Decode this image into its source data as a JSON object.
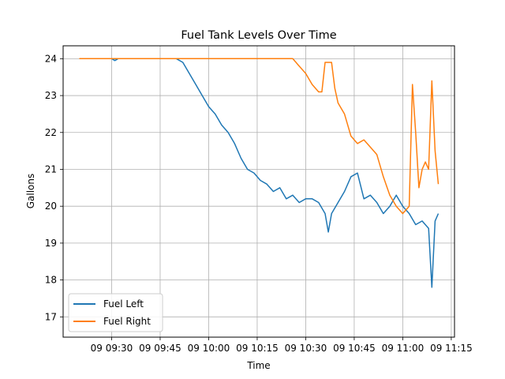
{
  "chart_data": {
    "type": "line",
    "title": "Fuel Tank Levels Over Time",
    "xlabel": "Time",
    "ylabel": "Gallons",
    "x_unit": "time of day (hh:mm)",
    "xlim": [
      "09:15",
      "11:16"
    ],
    "ylim": [
      16.45,
      24.35
    ],
    "x_ticks": [
      "09 09:30",
      "09 09:45",
      "09 10:00",
      "09 10:15",
      "09 10:30",
      "09 10:45",
      "09 11:00",
      "09 11:15"
    ],
    "y_ticks": [
      "17",
      "18",
      "19",
      "20",
      "21",
      "22",
      "23",
      "24"
    ],
    "grid": true,
    "legend_position": "lower left",
    "series": [
      {
        "name": "Fuel Left",
        "color": "#1f77b4",
        "points": [
          [
            "09:20",
            24.0
          ],
          [
            "09:30",
            24.0
          ],
          [
            "09:31",
            23.95
          ],
          [
            "09:32",
            24.0
          ],
          [
            "09:45",
            24.0
          ],
          [
            "09:50",
            24.0
          ],
          [
            "09:52",
            23.9
          ],
          [
            "09:54",
            23.6
          ],
          [
            "09:56",
            23.3
          ],
          [
            "09:58",
            23.0
          ],
          [
            "10:00",
            22.7
          ],
          [
            "10:02",
            22.5
          ],
          [
            "10:04",
            22.2
          ],
          [
            "10:06",
            22.0
          ],
          [
            "10:08",
            21.7
          ],
          [
            "10:10",
            21.3
          ],
          [
            "10:12",
            21.0
          ],
          [
            "10:14",
            20.9
          ],
          [
            "10:16",
            20.7
          ],
          [
            "10:18",
            20.6
          ],
          [
            "10:20",
            20.4
          ],
          [
            "10:22",
            20.5
          ],
          [
            "10:24",
            20.2
          ],
          [
            "10:26",
            20.3
          ],
          [
            "10:28",
            20.1
          ],
          [
            "10:30",
            20.2
          ],
          [
            "10:32",
            20.2
          ],
          [
            "10:34",
            20.1
          ],
          [
            "10:36",
            19.8
          ],
          [
            "10:37",
            19.3
          ],
          [
            "10:38",
            19.8
          ],
          [
            "10:40",
            20.1
          ],
          [
            "10:42",
            20.4
          ],
          [
            "10:44",
            20.8
          ],
          [
            "10:46",
            20.9
          ],
          [
            "10:48",
            20.2
          ],
          [
            "10:50",
            20.3
          ],
          [
            "10:52",
            20.1
          ],
          [
            "10:54",
            19.8
          ],
          [
            "10:56",
            20.0
          ],
          [
            "10:58",
            20.3
          ],
          [
            "11:00",
            20.0
          ],
          [
            "11:02",
            19.8
          ],
          [
            "11:04",
            19.5
          ],
          [
            "11:06",
            19.6
          ],
          [
            "11:08",
            19.4
          ],
          [
            "11:09",
            17.8
          ],
          [
            "11:10",
            19.6
          ],
          [
            "11:11",
            19.8
          ]
        ]
      },
      {
        "name": "Fuel Right",
        "color": "#ff7f0e",
        "points": [
          [
            "09:20",
            24.0
          ],
          [
            "09:30",
            24.0
          ],
          [
            "09:45",
            24.0
          ],
          [
            "10:00",
            24.0
          ],
          [
            "10:15",
            24.0
          ],
          [
            "10:20",
            24.0
          ],
          [
            "10:26",
            24.0
          ],
          [
            "10:28",
            23.8
          ],
          [
            "10:30",
            23.6
          ],
          [
            "10:32",
            23.3
          ],
          [
            "10:34",
            23.1
          ],
          [
            "10:35",
            23.1
          ],
          [
            "10:36",
            23.9
          ],
          [
            "10:38",
            23.9
          ],
          [
            "10:39",
            23.2
          ],
          [
            "10:40",
            22.8
          ],
          [
            "10:42",
            22.5
          ],
          [
            "10:44",
            21.9
          ],
          [
            "10:46",
            21.7
          ],
          [
            "10:48",
            21.8
          ],
          [
            "10:50",
            21.6
          ],
          [
            "10:52",
            21.4
          ],
          [
            "10:54",
            20.8
          ],
          [
            "10:56",
            20.3
          ],
          [
            "10:58",
            20.0
          ],
          [
            "11:00",
            19.8
          ],
          [
            "11:02",
            20.0
          ],
          [
            "11:03",
            23.3
          ],
          [
            "11:04",
            22.0
          ],
          [
            "11:05",
            20.5
          ],
          [
            "11:06",
            21.0
          ],
          [
            "11:07",
            21.2
          ],
          [
            "11:08",
            21.0
          ],
          [
            "11:09",
            23.4
          ],
          [
            "11:10",
            21.5
          ],
          [
            "11:11",
            20.6
          ]
        ]
      }
    ]
  }
}
